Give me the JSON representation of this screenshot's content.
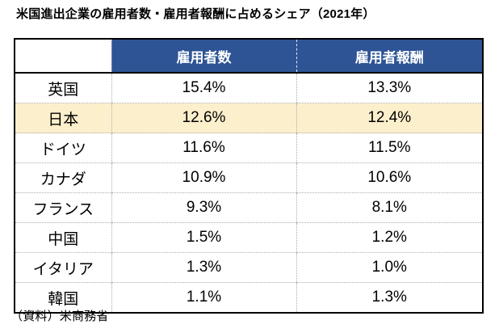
{
  "title": "米国進出企業の雇用者数・雇用者報酬に占めるシェア（2021年）",
  "table": {
    "header": {
      "country": "",
      "employees": "雇用者数",
      "compensation": "雇用者報酬"
    },
    "rows": [
      {
        "country": "英国",
        "employees": "15.4%",
        "compensation": "13.3%",
        "highlighted": false
      },
      {
        "country": "日本",
        "employees": "12.6%",
        "compensation": "12.4%",
        "highlighted": true
      },
      {
        "country": "ドイツ",
        "employees": "11.6%",
        "compensation": "11.5%",
        "highlighted": false
      },
      {
        "country": "カナダ",
        "employees": "10.9%",
        "compensation": "10.6%",
        "highlighted": false
      },
      {
        "country": "フランス",
        "employees": "9.3%",
        "compensation": "8.1%",
        "highlighted": false
      },
      {
        "country": "中国",
        "employees": "1.5%",
        "compensation": "1.2%",
        "highlighted": false
      },
      {
        "country": "イタリア",
        "employees": "1.3%",
        "compensation": "1.0%",
        "highlighted": false
      },
      {
        "country": "韓国",
        "employees": "1.1%",
        "compensation": "1.3%",
        "highlighted": false
      }
    ]
  },
  "footer": {
    "source": "（資料）米商務省"
  },
  "colors": {
    "header_bg": "#2E5496",
    "header_text": "#FFFFFF",
    "highlight_row_bg": "#FCEFCC",
    "outer_border": "#000000",
    "grid_dotted": "#ABABAB"
  },
  "chart_data": {
    "type": "table",
    "title": "米国進出企業の雇用者数・雇用者報酬に占めるシェア（2021年）",
    "columns": [
      "",
      "雇用者数",
      "雇用者報酬"
    ],
    "categories": [
      "英国",
      "日本",
      "ドイツ",
      "カナダ",
      "フランス",
      "中国",
      "イタリア",
      "韓国"
    ],
    "series": [
      {
        "name": "雇用者数",
        "values": [
          15.4,
          12.6,
          11.6,
          10.9,
          9.3,
          1.5,
          1.3,
          1.1
        ]
      },
      {
        "name": "雇用者報酬",
        "values": [
          13.3,
          12.4,
          11.5,
          10.6,
          8.1,
          1.2,
          1.0,
          1.3
        ]
      }
    ],
    "unit": "%",
    "highlighted_category": "日本",
    "source": "（資料）米商務省"
  }
}
